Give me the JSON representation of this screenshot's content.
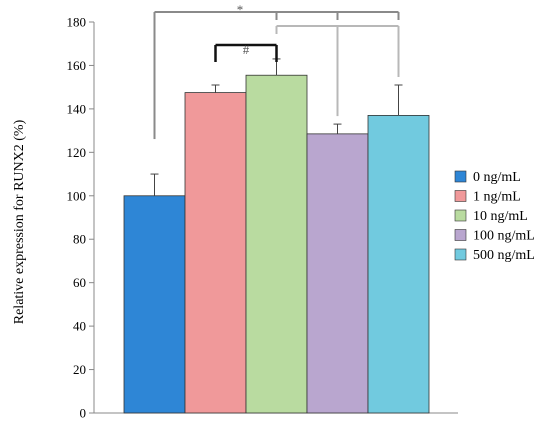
{
  "chart_data": {
    "type": "bar",
    "title": "",
    "xlabel": "",
    "ylabel": "Relative expression for RUNX2 (%)",
    "ylim": [
      0,
      180
    ],
    "yticks": [
      0,
      20,
      40,
      60,
      80,
      100,
      120,
      140,
      160,
      180
    ],
    "grid": false,
    "legend_position": "right",
    "categories": [
      "0 ng/mL",
      "1 ng/mL",
      "10 ng/mL",
      "100 ng/mL",
      "500 ng/mL"
    ],
    "values": [
      100,
      147.5,
      155.5,
      128.5,
      137
    ],
    "error_upper": [
      110,
      151,
      163,
      133,
      151
    ],
    "colors": [
      "#2e86d6",
      "#f0999a",
      "#b9dba0",
      "#b9a6cf",
      "#71cadf"
    ],
    "significance": [
      {
        "label": "*",
        "from": 0,
        "to": [
          2,
          3,
          4
        ],
        "color": "#8a8a8a"
      },
      {
        "label": "",
        "from": 2,
        "to": [
          3,
          4
        ],
        "color": "#b8b8b8"
      },
      {
        "label": "#",
        "from": 1,
        "to": [
          2
        ],
        "color": "#111111"
      }
    ]
  }
}
